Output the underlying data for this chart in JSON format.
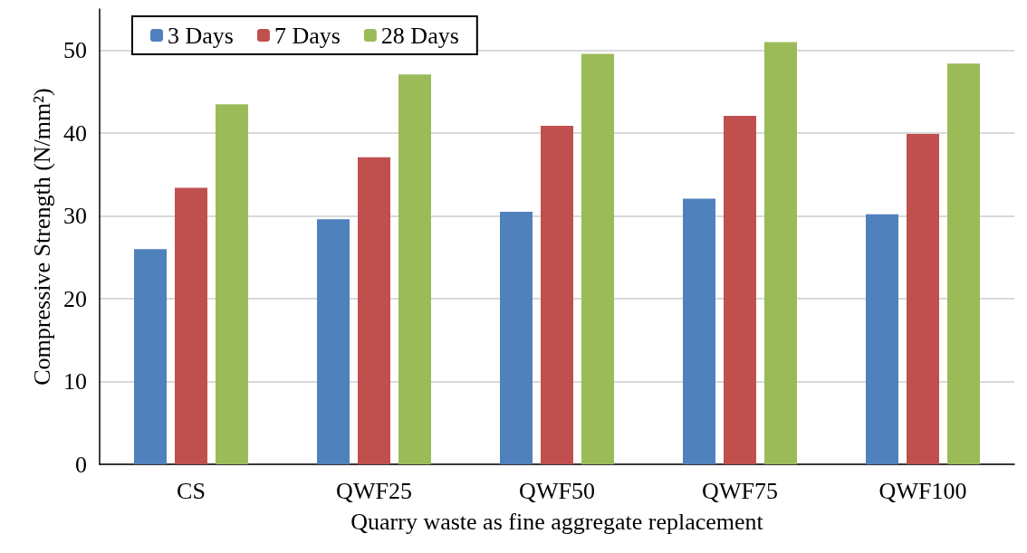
{
  "chart_data": {
    "type": "bar",
    "xlabel": "Quarry waste as fine aggregate replacement",
    "ylabel": "Compressive Strength (N/mm²)",
    "categories": [
      "CS",
      "QWF25",
      "QWF50",
      "QWF75",
      "QWF100"
    ],
    "series": [
      {
        "name": "3 Days",
        "color": "#4f81bd",
        "values": [
          26.0,
          29.6,
          30.5,
          32.1,
          30.2
        ]
      },
      {
        "name": "7 Days",
        "color": "#c0504d",
        "values": [
          33.4,
          37.1,
          40.9,
          42.1,
          39.9
        ]
      },
      {
        "name": "28 Days",
        "color": "#9bbb59",
        "values": [
          43.5,
          47.1,
          49.6,
          51.0,
          48.4
        ]
      }
    ],
    "ylim": [
      0,
      55
    ],
    "yticks": [
      0,
      10,
      20,
      30,
      40,
      50
    ],
    "grid": "y",
    "legend": "top left"
  }
}
